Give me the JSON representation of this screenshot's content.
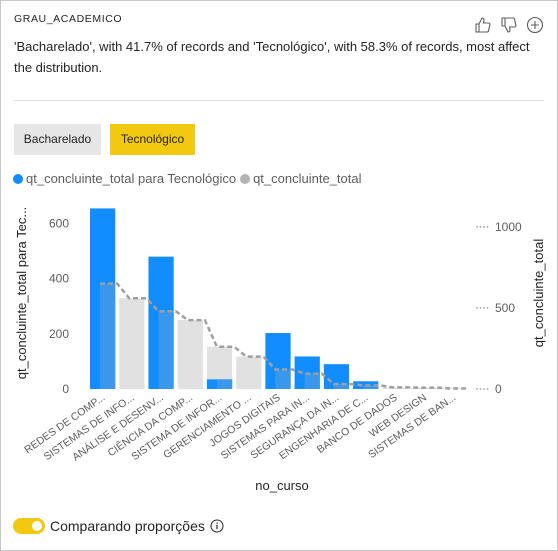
{
  "header": {
    "field_name": "GRAU_ACADEMICO",
    "insight": "'Bacharelado', with 41.7% of records and 'Tecnológico', with 58.3% of records, most affect the distribution.",
    "icons": [
      "thumbs-up-icon",
      "thumbs-down-icon",
      "add-icon"
    ]
  },
  "segments": [
    {
      "label": "Bacharelado",
      "selected": false
    },
    {
      "label": "Tecnológico",
      "selected": true
    }
  ],
  "legend": {
    "items": [
      {
        "label": "qt_concluinte_total para Tecnológico",
        "color": "#118dff"
      },
      {
        "label": "qt_concluinte_total",
        "color": "#b3b3b3"
      }
    ]
  },
  "toggle": {
    "label": "Comparando proporções",
    "on": true,
    "color": "#f2c811"
  },
  "colors": {
    "accent": "#f2c811",
    "series_primary": "#118dff",
    "series_primary_overlap": "#4a9be6",
    "series_comparison": "#e1e1e1",
    "comparison_outline": "#a0a0a0"
  },
  "chart_data": {
    "type": "bar",
    "categories": [
      "REDES DE COMP...",
      "SISTEMAS DE INFO...",
      "ANÁLISE E DESENV...",
      "CIÊNCIA DA COMP...",
      "SISTEMA DE INFOR...",
      "GERENCIAMENTO ...",
      "JOGOS DIGITAIS",
      "SISTEMAS PARA IN...",
      "SEGURANÇA DA IN...",
      "ENGENHARIA DE C...",
      "BANCO DE DADOS",
      "WEB DESIGN",
      "SISTEMAS DE BAN..."
    ],
    "series": [
      {
        "name": "qt_concluinte_total para Tecnológico",
        "axis": "left",
        "values": [
          655,
          0,
          480,
          0,
          35,
          0,
          203,
          118,
          90,
          28,
          0,
          0,
          0
        ]
      },
      {
        "name": "qt_concluinte_total",
        "axis": "right",
        "values": [
          650,
          560,
          480,
          425,
          260,
          200,
          120,
          95,
          30,
          22,
          10,
          8,
          3
        ]
      }
    ],
    "xlabel": "no_curso",
    "ylabel_left": "qt_concluinte_total para Tec...",
    "ylabel_right": "qt_concluinte_total",
    "ylim_left": [
      0,
      700
    ],
    "yticks_left": [
      0,
      200,
      400,
      600
    ],
    "ylim_right": [
      0,
      1190
    ],
    "yticks_right": [
      0,
      500,
      1000
    ],
    "grid": false,
    "legend_position": "top-left"
  }
}
